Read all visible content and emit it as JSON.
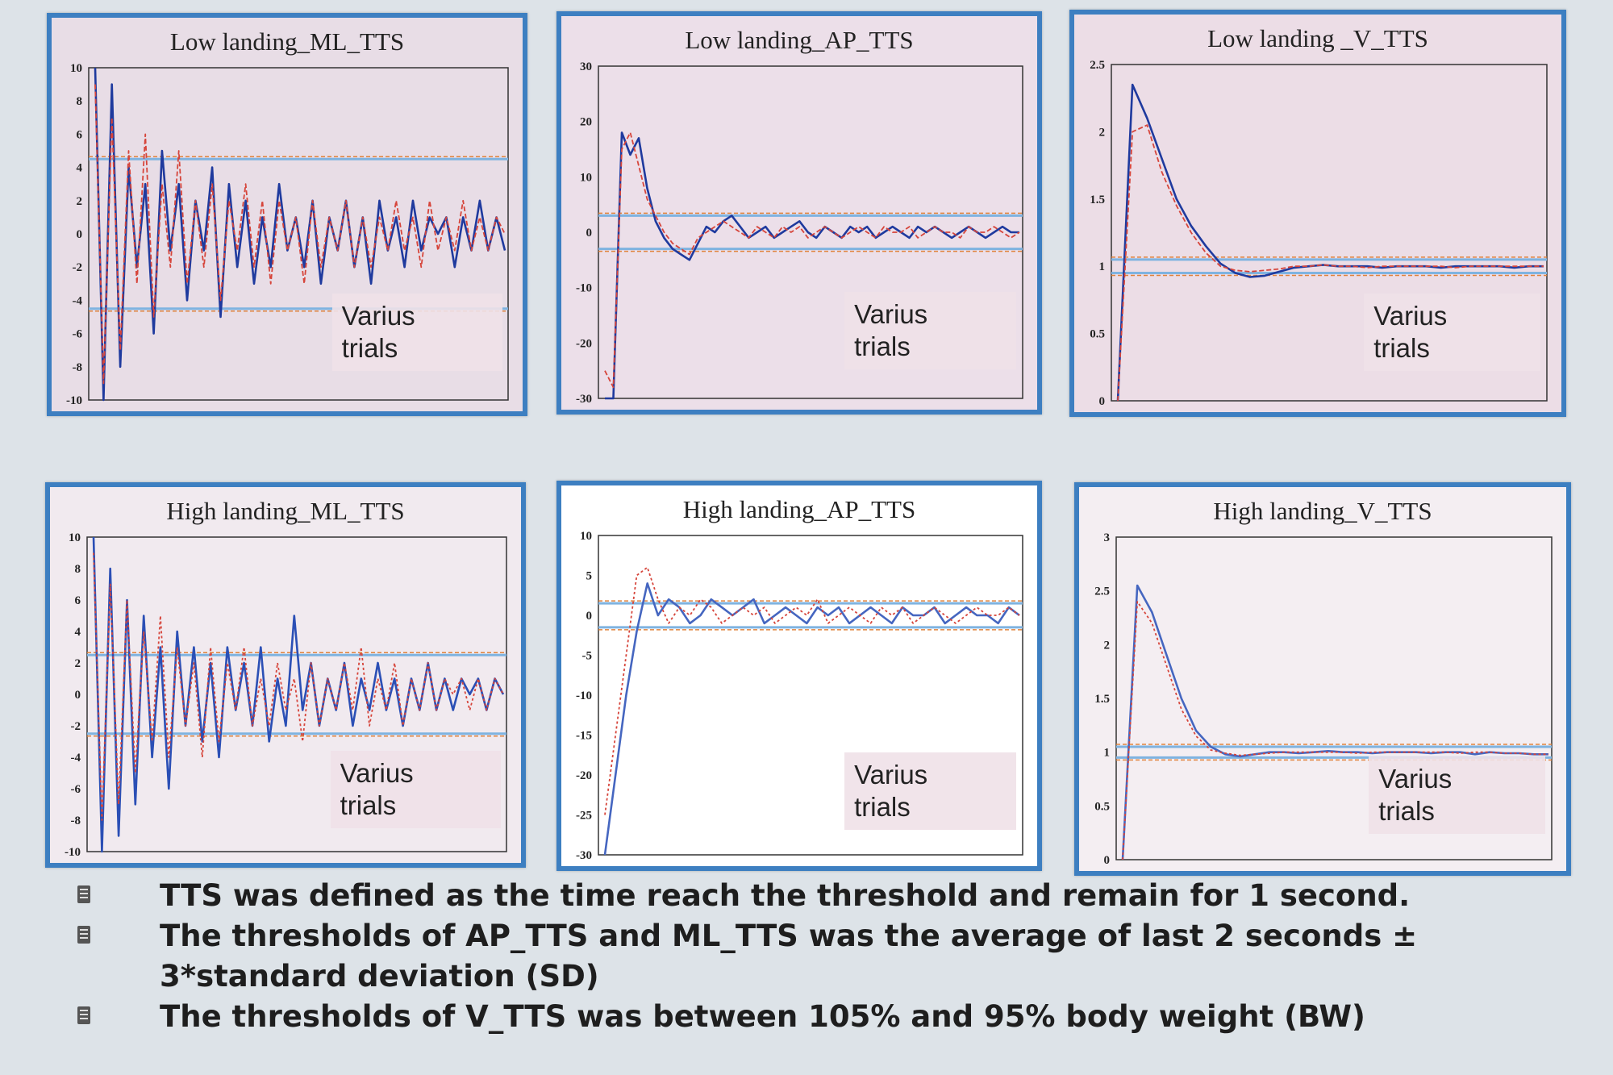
{
  "chart_data": [
    {
      "type": "line",
      "title": "Low landing_ML_TTS",
      "ylim": [
        -10,
        10
      ],
      "yticks": [
        "10",
        "8",
        "6",
        "4",
        "2",
        "0",
        "-2",
        "-4",
        "-6",
        "-8",
        "-10"
      ],
      "annotation": "Varius\ntrials",
      "thresholds": [
        4.5,
        -4.5
      ],
      "series": [
        {
          "color": "#1f3a9e",
          "style": "solid",
          "values": [
            10,
            -10,
            9,
            -8,
            4,
            -2,
            3,
            -6,
            5,
            -1,
            3,
            -4,
            2,
            -1,
            4,
            -5,
            3,
            -2,
            2,
            -3,
            1,
            -2,
            3,
            -1,
            1,
            -2,
            2,
            -3,
            1,
            -1,
            2,
            -2,
            1,
            -3,
            2,
            -1,
            1,
            -2,
            2,
            -1,
            1,
            0,
            1,
            -2,
            1,
            -1,
            2,
            -1,
            1,
            -1
          ]
        },
        {
          "color": "#d6453b",
          "style": "dashed",
          "values": [
            9,
            -9,
            7,
            -7,
            5,
            -3,
            6,
            -5,
            3,
            -2,
            5,
            -3,
            2,
            -2,
            3,
            -4,
            2,
            -1,
            3,
            -2,
            2,
            -3,
            2,
            -1,
            1,
            -3,
            2,
            -2,
            1,
            -1,
            2,
            -2,
            1,
            -2,
            1,
            -1,
            2,
            -1,
            1,
            -2,
            2,
            -1,
            1,
            -1,
            2,
            -1,
            1,
            -1,
            1,
            0
          ]
        }
      ]
    },
    {
      "type": "line",
      "title": "Low landing_AP_TTS",
      "ylim": [
        -30,
        30
      ],
      "yticks": [
        "30",
        "20",
        "10",
        "0",
        "-10",
        "-20",
        "-30"
      ],
      "annotation": "Varius\ntrials",
      "thresholds": [
        3,
        -3
      ],
      "series": [
        {
          "color": "#1f3a9e",
          "style": "solid",
          "values": [
            -30,
            -30,
            18,
            14,
            17,
            8,
            2,
            -1,
            -3,
            -4,
            -5,
            -2,
            1,
            0,
            2,
            3,
            1,
            -1,
            0,
            1,
            -1,
            0,
            1,
            2,
            0,
            -1,
            1,
            0,
            -1,
            1,
            0,
            1,
            -1,
            0,
            1,
            0,
            -1,
            1,
            0,
            1,
            0,
            -1,
            0,
            1,
            0,
            -1,
            0,
            1,
            0,
            0
          ]
        },
        {
          "color": "#d6453b",
          "style": "dashed",
          "values": [
            -25,
            -28,
            15,
            18,
            12,
            6,
            3,
            0,
            -2,
            -3,
            -4,
            -1,
            0,
            1,
            2,
            1,
            0,
            -1,
            1,
            0,
            -1,
            1,
            0,
            1,
            -1,
            0,
            1,
            0,
            -1,
            0,
            1,
            0,
            -1,
            1,
            0,
            0,
            1,
            -1,
            0,
            1,
            0,
            0,
            -1,
            1,
            0,
            0,
            1,
            0,
            -1,
            0
          ]
        }
      ]
    },
    {
      "type": "line",
      "title": "Low landing _V_TTS",
      "ylim": [
        0,
        2.5
      ],
      "yticks": [
        "2.5",
        "2",
        "1.5",
        "1",
        "0.5",
        "0"
      ],
      "annotation": "Varius\ntrials",
      "thresholds": [
        1.05,
        0.95
      ],
      "series": [
        {
          "color": "#1f3a9e",
          "style": "solid",
          "values": [
            0,
            2.35,
            2.1,
            1.8,
            1.5,
            1.3,
            1.15,
            1.02,
            0.95,
            0.92,
            0.93,
            0.96,
            0.99,
            1.0,
            1.01,
            1.0,
            1.0,
            1.0,
            0.99,
            1.0,
            1.0,
            1.0,
            0.99,
            1.0,
            1.0,
            1.0,
            1.0,
            0.99,
            1.0,
            1.0
          ]
        },
        {
          "color": "#d6453b",
          "style": "dashed",
          "values": [
            0,
            2.0,
            2.05,
            1.7,
            1.45,
            1.25,
            1.1,
            1.0,
            0.97,
            0.96,
            0.97,
            0.98,
            1.0,
            1.0,
            1.01,
            1.0,
            1.0,
            0.99,
            1.0,
            1.0,
            1.0,
            1.0,
            1.0,
            0.99,
            1.0,
            1.0,
            1.0,
            1.0,
            1.0,
            1.0
          ]
        }
      ]
    },
    {
      "type": "line",
      "title": "High landing_ML_TTS",
      "ylim": [
        -10,
        10
      ],
      "yticks": [
        "10",
        "8",
        "6",
        "4",
        "2",
        "0",
        "-2",
        "-4",
        "-6",
        "-8",
        "-10"
      ],
      "annotation": "Varius\ntrials",
      "thresholds": [
        2.5,
        -2.5
      ],
      "series": [
        {
          "color": "#2b4fb5",
          "style": "solid",
          "values": [
            10,
            -10,
            8,
            -9,
            6,
            -7,
            5,
            -4,
            3,
            -6,
            4,
            -2,
            3,
            -3,
            2,
            -4,
            3,
            -1,
            2,
            -2,
            3,
            -3,
            1,
            -2,
            5,
            -1,
            2,
            -2,
            1,
            -1,
            2,
            -2,
            1,
            -1,
            2,
            -1,
            1,
            -2,
            1,
            -1,
            2,
            -1,
            1,
            -1,
            1,
            0,
            1,
            -1,
            1,
            0
          ]
        },
        {
          "color": "#d6453b",
          "style": "dotted",
          "values": [
            9,
            -8,
            7,
            -7,
            6,
            -5,
            4,
            -3,
            5,
            -4,
            3,
            -2,
            2,
            -4,
            3,
            -3,
            2,
            -1,
            3,
            -2,
            1,
            -2,
            2,
            -1,
            1,
            -3,
            2,
            -2,
            1,
            -1,
            2,
            -1,
            3,
            -2,
            1,
            -1,
            2,
            -2,
            1,
            -1,
            2,
            -1,
            1,
            0,
            1,
            -1,
            1,
            -1,
            1,
            0
          ]
        }
      ]
    },
    {
      "type": "line",
      "title": "High landing_AP_TTS",
      "ylim": [
        -30,
        10
      ],
      "yticks": [
        "10",
        "5",
        "0",
        "-5",
        "-10",
        "-15",
        "-20",
        "-25",
        "-30"
      ],
      "annotation": "Varius\ntrials",
      "thresholds": [
        1.5,
        -1.5
      ],
      "series": [
        {
          "color": "#4566c0",
          "style": "solid",
          "values": [
            -30,
            -20,
            -10,
            -2,
            4,
            0,
            2,
            1,
            -1,
            0,
            2,
            1,
            0,
            1,
            2,
            -1,
            0,
            1,
            0,
            -1,
            1,
            0,
            1,
            -1,
            0,
            1,
            0,
            -1,
            1,
            0,
            0,
            1,
            -1,
            0,
            1,
            0,
            0,
            -1,
            1,
            0
          ]
        },
        {
          "color": "#d6453b",
          "style": "dotted",
          "values": [
            -25,
            -15,
            -5,
            5,
            6,
            2,
            -1,
            1,
            0,
            2,
            1,
            -1,
            0,
            1,
            0,
            1,
            -1,
            0,
            1,
            0,
            2,
            -1,
            0,
            1,
            0,
            -1,
            1,
            0,
            1,
            -1,
            0,
            1,
            0,
            -1,
            0,
            1,
            0,
            0,
            1,
            0
          ]
        }
      ]
    },
    {
      "type": "line",
      "title": "High landing_V_TTS",
      "ylim": [
        0,
        3
      ],
      "yticks": [
        "3",
        "2.5",
        "2",
        "1.5",
        "1",
        "0.5",
        "0"
      ],
      "annotation": "Varius\ntrials",
      "thresholds": [
        1.05,
        0.95
      ],
      "series": [
        {
          "color": "#4566c0",
          "style": "solid",
          "values": [
            0,
            2.55,
            2.3,
            1.9,
            1.5,
            1.2,
            1.05,
            0.98,
            0.96,
            0.98,
            1.0,
            1.0,
            0.99,
            1.0,
            1.01,
            1.0,
            1.0,
            0.99,
            1.0,
            1.0,
            1.0,
            0.99,
            1.0,
            1.0,
            0.98,
            1.0,
            0.99,
            0.99,
            0.98,
            0.98
          ]
        },
        {
          "color": "#d6453b",
          "style": "dotted",
          "values": [
            0,
            2.4,
            2.2,
            1.8,
            1.4,
            1.15,
            1.02,
            0.99,
            0.97,
            0.98,
            0.99,
            1.0,
            1.0,
            1.0,
            1.0,
            1.0,
            0.99,
            1.0,
            1.0,
            1.0,
            1.0,
            1.0,
            1.0,
            0.99,
            1.0,
            1.0,
            0.99,
            0.99,
            0.98,
            0.98
          ]
        }
      ]
    }
  ],
  "notes": [
    "TTS was defined as the time reach the threshold and remain for 1 second.",
    "The thresholds of AP_TTS and ML_TTS was the average of last 2 seconds ± 3*standard deviation (SD)",
    "The thresholds of V_TTS was between 105% and 95% body weight (BW)"
  ]
}
